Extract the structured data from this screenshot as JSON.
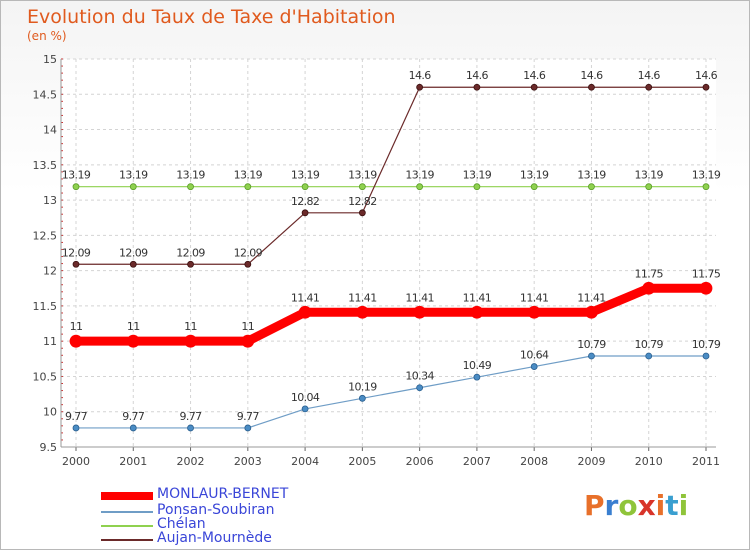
{
  "title": "Evolution du Taux de Taxe d'Habitation",
  "unit": "(en %)",
  "logo": "Proxiti",
  "chart_data": {
    "type": "line",
    "title": "Evolution du Taux de Taxe d'Habitation",
    "ylabel": "(en %)",
    "xlabel": "",
    "x": [
      "2000",
      "2001",
      "2002",
      "2003",
      "2004",
      "2005",
      "2006",
      "2007",
      "2008",
      "2009",
      "2010",
      "2011"
    ],
    "ylim": [
      9.5,
      15
    ],
    "yticks": [
      "9.5",
      "10",
      "10.5",
      "11",
      "11.5",
      "12",
      "12.5",
      "13",
      "13.5",
      "14",
      "14.5",
      "15"
    ],
    "grid": true,
    "series": [
      {
        "name": "MONLAUR-BERNET",
        "color": "#ff0000",
        "values": [
          11,
          11,
          11,
          11,
          11.41,
          11.41,
          11.41,
          11.41,
          11.41,
          11.41,
          11.75,
          11.75
        ],
        "labels": [
          "11",
          "11",
          "11",
          "11",
          "11.41",
          "11.41",
          "11.41",
          "11.41",
          "11.41",
          "11.41",
          "11.75",
          "11.75"
        ]
      },
      {
        "name": "Ponsan-Soubiran",
        "color": "#6f9dc6",
        "values": [
          9.77,
          9.77,
          9.77,
          9.77,
          10.04,
          10.19,
          10.34,
          10.49,
          10.64,
          10.79,
          10.79,
          10.79
        ],
        "labels": [
          "9.77",
          "9.77",
          "9.77",
          "9.77",
          "10.04",
          "10.19",
          "10.34",
          "10.49",
          "10.64",
          "10.79",
          "10.79",
          "10.79"
        ]
      },
      {
        "name": "Chélan",
        "color": "#8fd14f",
        "values": [
          13.19,
          13.19,
          13.19,
          13.19,
          13.19,
          13.19,
          13.19,
          13.19,
          13.19,
          13.19,
          13.19,
          13.19
        ],
        "labels": [
          "13.19",
          "13.19",
          "13.19",
          "13.19",
          "13.19",
          "13.19",
          "13.19",
          "13.19",
          "13.19",
          "13.19",
          "13.19",
          "13.19"
        ]
      },
      {
        "name": "Aujan-Mournède",
        "color": "#6b2a2a",
        "values": [
          12.09,
          12.09,
          12.09,
          12.09,
          12.82,
          12.82,
          14.6,
          14.6,
          14.6,
          14.6,
          14.6,
          14.6
        ],
        "labels": [
          "12.09",
          "12.09",
          "12.09",
          "12.09",
          "12.82",
          "12.82",
          "14.6",
          "14.6",
          "14.6",
          "14.6",
          "14.6",
          "14.6"
        ]
      }
    ],
    "legend": [
      {
        "name": "MONLAUR-BERNET",
        "color": "#ff0000"
      },
      {
        "name": "Ponsan-Soubiran",
        "color": "#6f9dc6"
      },
      {
        "name": "Chélan",
        "color": "#8fd14f"
      },
      {
        "name": "Aujan-Mournède",
        "color": "#6b2a2a"
      }
    ]
  }
}
